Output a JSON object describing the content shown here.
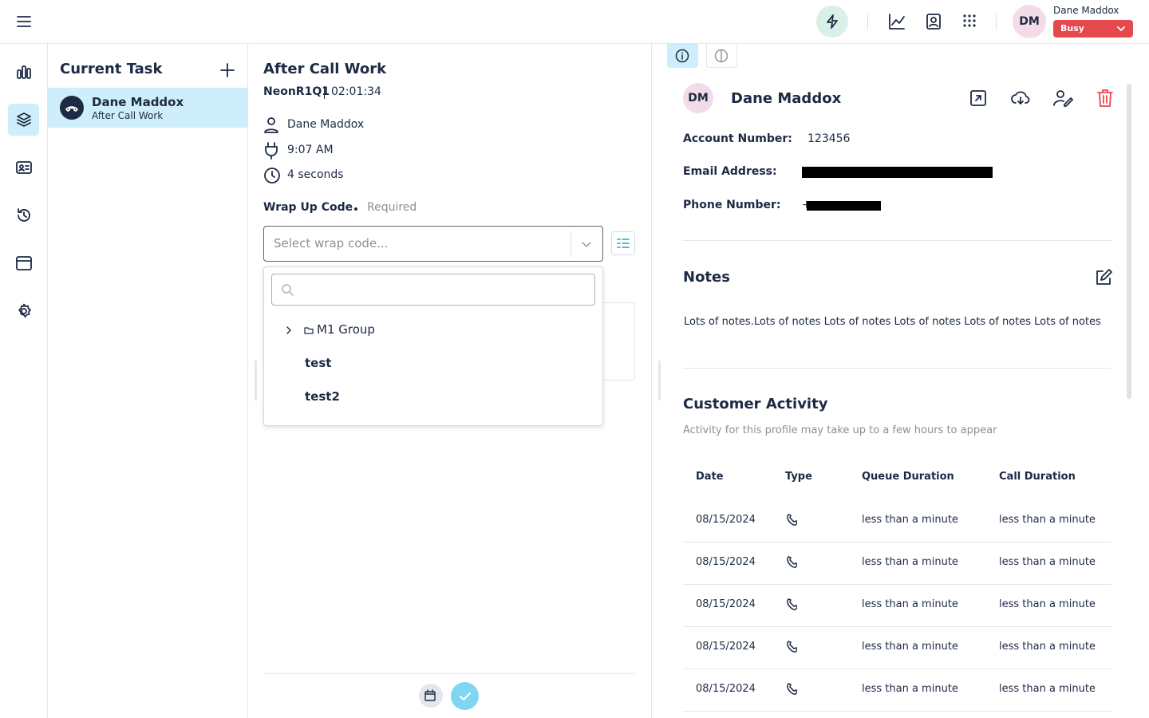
{
  "header": {
    "initials": "DM",
    "user_name": "Dane Maddox",
    "status": "Busy"
  },
  "tasks": {
    "title": "Current Task",
    "items": [
      {
        "name": "Dane Maddox",
        "status": "After Call Work"
      }
    ]
  },
  "work": {
    "title": "After Call Work",
    "queue": "NeonR1Q1",
    "timer": "02:01:34",
    "contact": "Dane Maddox",
    "start_time": "9:07 AM",
    "duration": "4 seconds",
    "wrap_label": "Wrap Up Code",
    "required": "Required",
    "placeholder": "Select wrap code...",
    "options": [
      "M1 Group",
      "test",
      "test2"
    ]
  },
  "profile": {
    "initials": "DM",
    "name": "Dane Maddox",
    "fields": [
      {
        "label": "Account Number:",
        "value": "123456"
      },
      {
        "label": "Email Address:"
      },
      {
        "label": "Phone Number:",
        "value": "+"
      }
    ],
    "notes_title": "Notes",
    "notes": "Lots of notes.Lots of notes Lots of notes Lots of notes Lots of notes Lots of notes",
    "activity_title": "Customer Activity",
    "activity_subtitle": "Activity for this profile may take up to a few hours to appear",
    "columns": [
      "Date",
      "Type",
      "Queue Duration",
      "Call Duration"
    ],
    "rows": [
      [
        "08/15/2024",
        "less than a minute",
        "less than a minute"
      ],
      [
        "08/15/2024",
        "less than a minute",
        "less than a minute"
      ],
      [
        "08/15/2024",
        "less than a minute",
        "less than a minute"
      ],
      [
        "08/15/2024",
        "less than a minute",
        "less than a minute"
      ],
      [
        "08/15/2024",
        "less than a minute",
        "less than a minute"
      ]
    ]
  }
}
